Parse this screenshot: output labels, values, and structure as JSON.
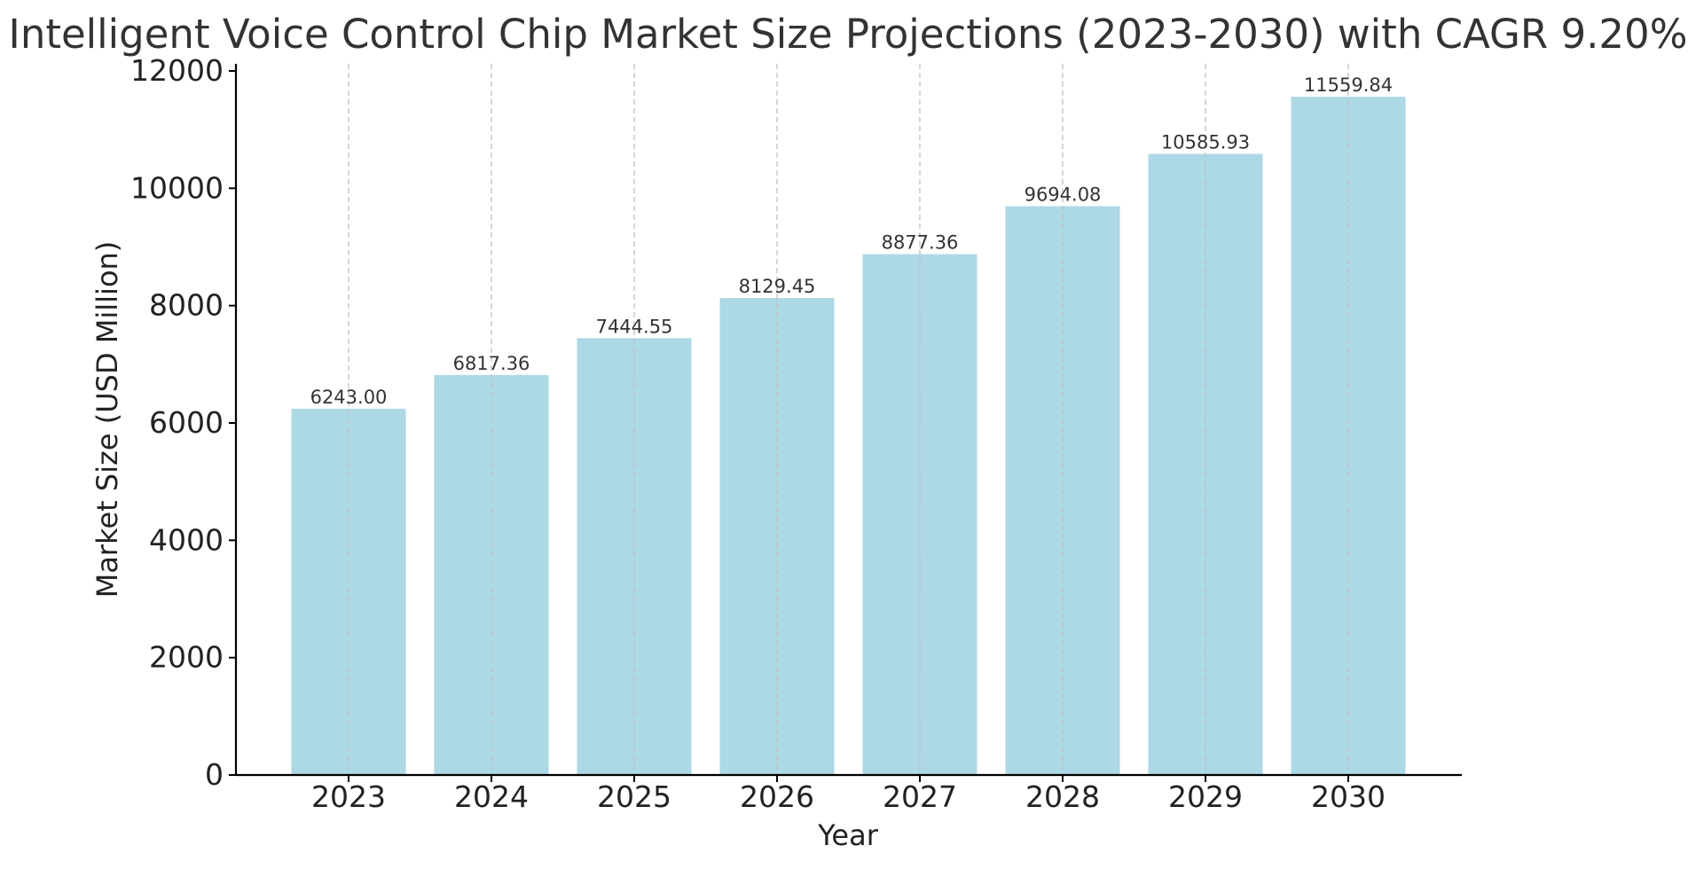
{
  "chart_data": {
    "type": "bar",
    "title": "Intelligent Voice Control Chip Market Size Projections (2023-2030) with CAGR 9.20%",
    "xlabel": "Year",
    "ylabel": "Market Size (USD Million)",
    "categories": [
      "2023",
      "2024",
      "2025",
      "2026",
      "2027",
      "2028",
      "2029",
      "2030"
    ],
    "values": [
      6243.0,
      6817.36,
      7444.55,
      8129.45,
      8877.36,
      9694.08,
      10585.93,
      11559.84
    ],
    "value_labels": [
      "6243.00",
      "6817.36",
      "7444.55",
      "8129.45",
      "8877.36",
      "9694.08",
      "10585.93",
      "11559.84"
    ],
    "ylim": [
      0,
      12000
    ],
    "y_ticks": [
      0,
      2000,
      4000,
      6000,
      8000,
      10000,
      12000
    ],
    "y_tick_labels": [
      "0",
      "2000",
      "4000",
      "6000",
      "8000",
      "10000",
      "12000"
    ],
    "grid": "vertical dashed",
    "bar_color": "#add8e6",
    "axis_color": "#000000",
    "grid_color": "#c0c0c0"
  }
}
